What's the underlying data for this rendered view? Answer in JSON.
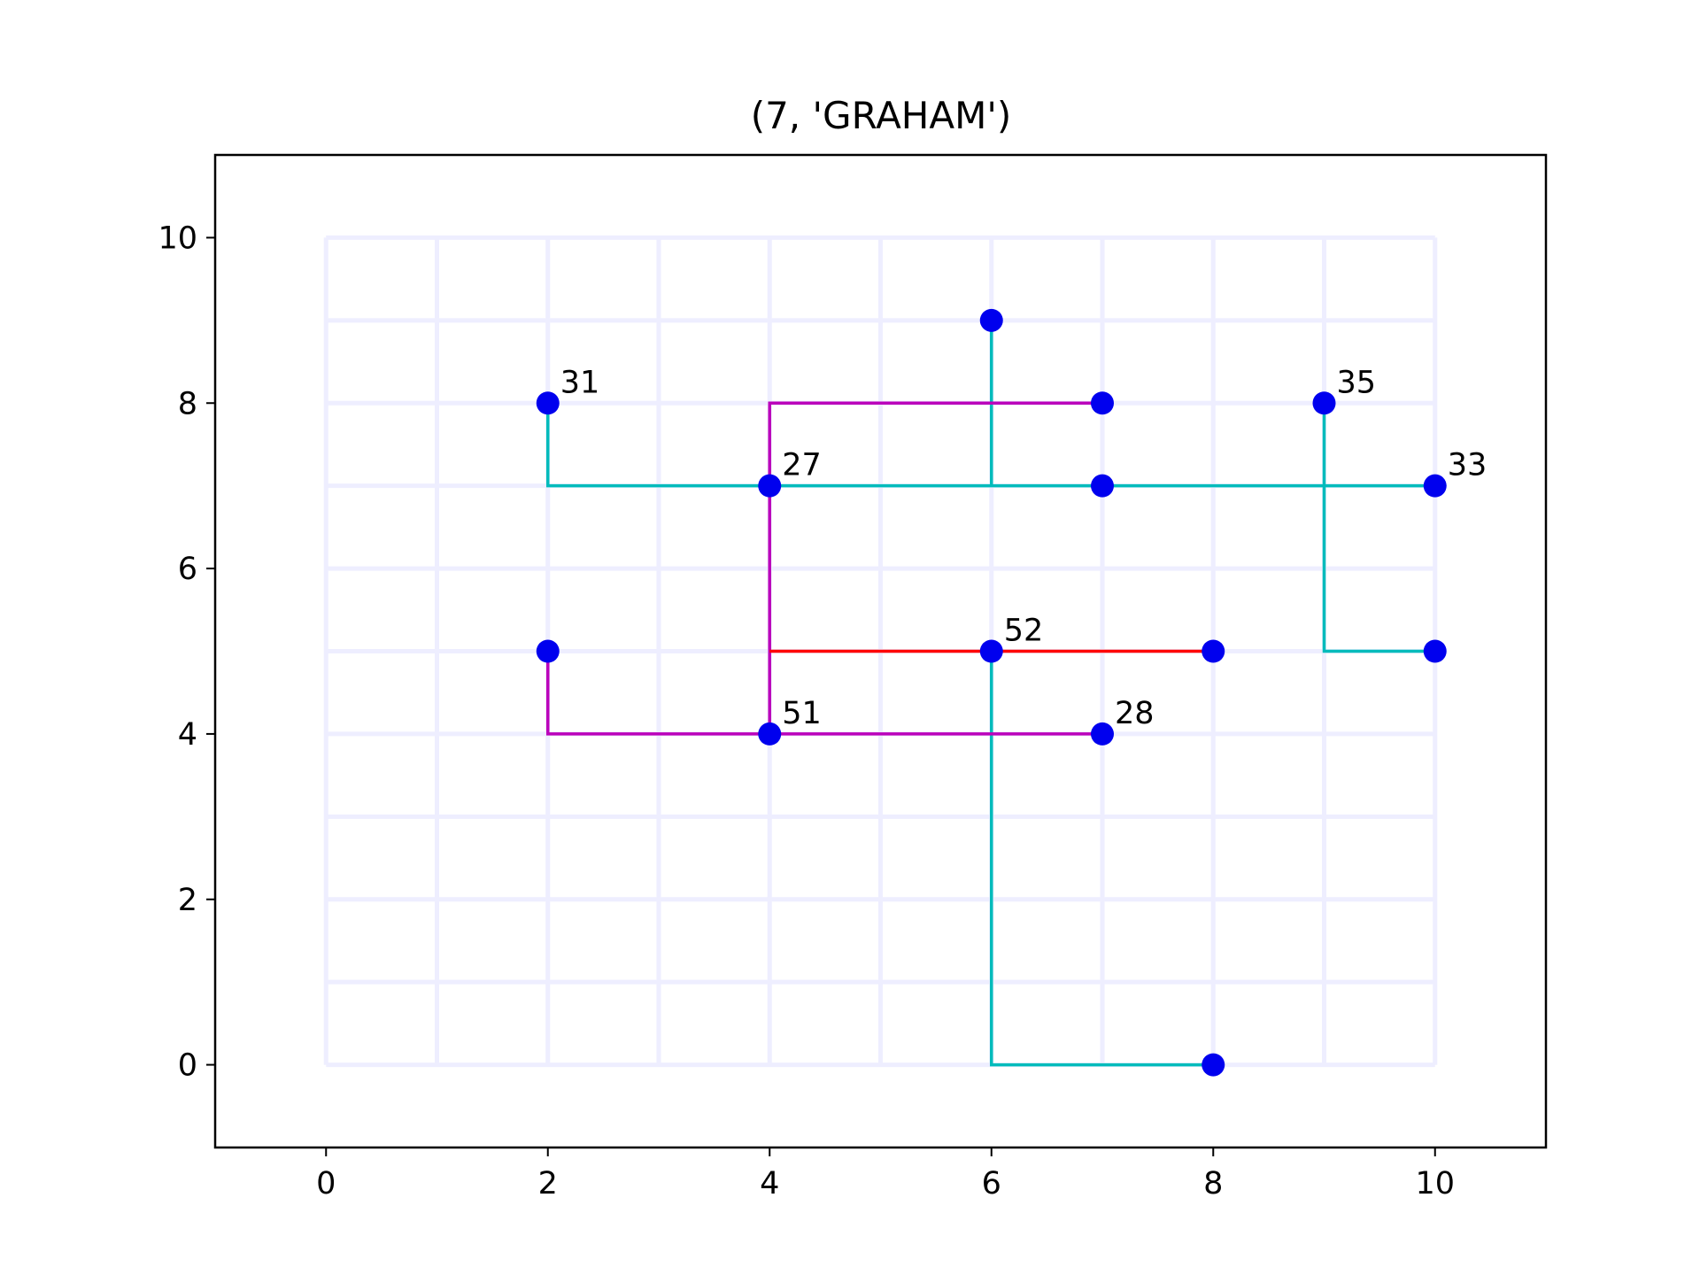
{
  "chart_data": {
    "type": "line",
    "title": "(7, 'GRAHAM')",
    "xlabel": "",
    "ylabel": "",
    "xlim": [
      -1,
      11
    ],
    "ylim": [
      -1,
      11
    ],
    "xticks": [
      0,
      2,
      4,
      6,
      8,
      10
    ],
    "yticks": [
      0,
      2,
      4,
      6,
      8,
      10
    ],
    "grid": {
      "visible": true,
      "x_range": [
        0,
        10
      ],
      "y_range": [
        0,
        10
      ],
      "step": 1,
      "color": "#eeeeff"
    },
    "legend": "none",
    "segments": [
      {
        "color": "#00bbbb",
        "points": [
          [
            2,
            8
          ],
          [
            2,
            7
          ],
          [
            10,
            7
          ]
        ]
      },
      {
        "color": "#00bbbb",
        "points": [
          [
            6,
            9
          ],
          [
            6,
            7
          ]
        ]
      },
      {
        "color": "#00bbbb",
        "points": [
          [
            9,
            8
          ],
          [
            9,
            5
          ],
          [
            10,
            5
          ]
        ]
      },
      {
        "color": "#00bbbb",
        "points": [
          [
            6,
            5
          ],
          [
            6,
            0
          ],
          [
            8,
            0
          ]
        ]
      },
      {
        "color": "#bb00bb",
        "points": [
          [
            7,
            8
          ],
          [
            4,
            8
          ],
          [
            4,
            4
          ]
        ]
      },
      {
        "color": "#bb00bb",
        "points": [
          [
            2,
            5
          ],
          [
            2,
            4
          ],
          [
            7,
            4
          ]
        ]
      },
      {
        "color": "#ff0000",
        "points": [
          [
            4,
            5
          ],
          [
            8,
            5
          ]
        ]
      }
    ],
    "points": [
      {
        "x": 2,
        "y": 8,
        "label": "31"
      },
      {
        "x": 4,
        "y": 7,
        "label": "27"
      },
      {
        "x": 6,
        "y": 9,
        "label": ""
      },
      {
        "x": 7,
        "y": 8,
        "label": ""
      },
      {
        "x": 7,
        "y": 7,
        "label": ""
      },
      {
        "x": 9,
        "y": 8,
        "label": "35"
      },
      {
        "x": 10,
        "y": 7,
        "label": "33"
      },
      {
        "x": 2,
        "y": 5,
        "label": ""
      },
      {
        "x": 6,
        "y": 5,
        "label": "52"
      },
      {
        "x": 8,
        "y": 5,
        "label": ""
      },
      {
        "x": 10,
        "y": 5,
        "label": ""
      },
      {
        "x": 4,
        "y": 4,
        "label": "51"
      },
      {
        "x": 7,
        "y": 4,
        "label": "28"
      },
      {
        "x": 8,
        "y": 0,
        "label": ""
      }
    ],
    "point_color": "#0000ee"
  }
}
